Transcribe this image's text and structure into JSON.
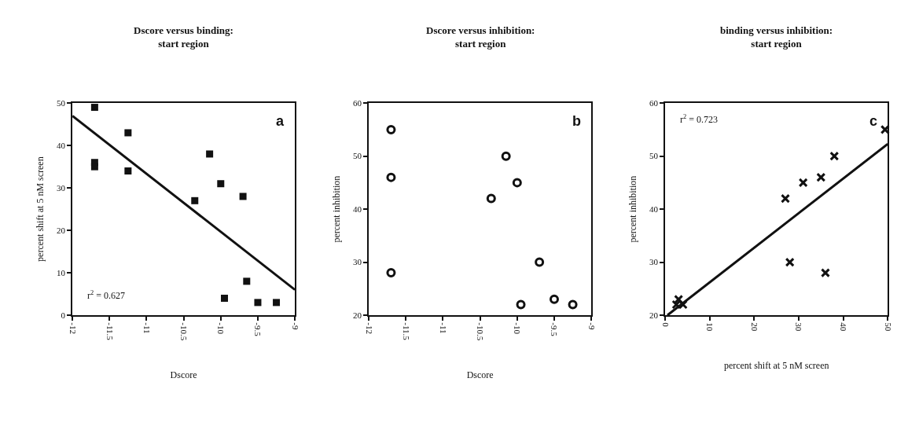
{
  "chart_data": [
    {
      "type": "scatter",
      "title": "Dscore versus binding:\nstart region",
      "xlabel": "Dscore",
      "ylabel": "percent shift at 5 nM screen",
      "xlim": [
        -12,
        -9
      ],
      "xticks": [
        -12,
        -11.5,
        -11,
        -10.5,
        -10,
        -9.5,
        -9
      ],
      "ylim": [
        0,
        50
      ],
      "yticks": [
        0,
        10,
        20,
        30,
        40,
        50
      ],
      "series": [
        {
          "marker": "square",
          "color": "#111111",
          "x": [
            -11.7,
            -11.7,
            -11.7,
            -11.25,
            -11.25,
            -10.35,
            -10.15,
            -10.0,
            -9.7,
            -9.65,
            -9.95,
            -9.5,
            -9.25
          ],
          "values": [
            49,
            36,
            35,
            43,
            34,
            27,
            38,
            31,
            28,
            8,
            4,
            3,
            3
          ]
        },
        {
          "type": "line",
          "marker": "none",
          "color": "#111111",
          "x": [
            -12,
            -9
          ],
          "values": [
            47,
            6
          ]
        }
      ],
      "annotations": [
        "a",
        "r$^{2}$ = 0.627"
      ]
    },
    {
      "type": "scatter",
      "title": "Dscore versus inhibition:\nstart region",
      "xlabel": "Dscore",
      "ylabel": "percent inhibition",
      "xlim": [
        -12,
        -9
      ],
      "xticks": [
        -12,
        -11.5,
        -11,
        -10.5,
        -10,
        -9.5,
        -9
      ],
      "ylim": [
        20,
        60
      ],
      "yticks": [
        20,
        30,
        40,
        50,
        60
      ],
      "series": [
        {
          "marker": "circle",
          "color": "#111111",
          "x": [
            -11.7,
            -11.7,
            -11.7,
            -10.35,
            -10.15,
            -10.0,
            -9.7,
            -9.95,
            -9.5,
            -9.25
          ],
          "values": [
            55,
            46,
            28,
            42,
            50,
            45,
            30,
            22,
            23,
            22
          ]
        }
      ],
      "annotations": [
        "b"
      ]
    },
    {
      "type": "scatter",
      "title": "binding versus inhibition:\nstart region",
      "xlabel": "percent shift at 5 nM screen",
      "ylabel": "percent inhibition",
      "xlim": [
        0,
        50
      ],
      "xticks": [
        0,
        10,
        20,
        30,
        40,
        50
      ],
      "ylim": [
        20,
        60
      ],
      "yticks": [
        20,
        30,
        40,
        50,
        60
      ],
      "series": [
        {
          "marker": "cross",
          "color": "#111111",
          "x": [
            49.4,
            38,
            35,
            31,
            27,
            28,
            36,
            3,
            2.5,
            4
          ],
          "values": [
            55,
            50,
            46,
            45,
            42,
            30,
            28,
            23,
            22,
            22
          ]
        },
        {
          "type": "line",
          "marker": "none",
          "color": "#111111",
          "x": [
            0.5,
            50
          ],
          "values": [
            20,
            52.3
          ]
        }
      ],
      "annotations": [
        "c",
        "r$^{2}$ = 0.723"
      ]
    }
  ]
}
